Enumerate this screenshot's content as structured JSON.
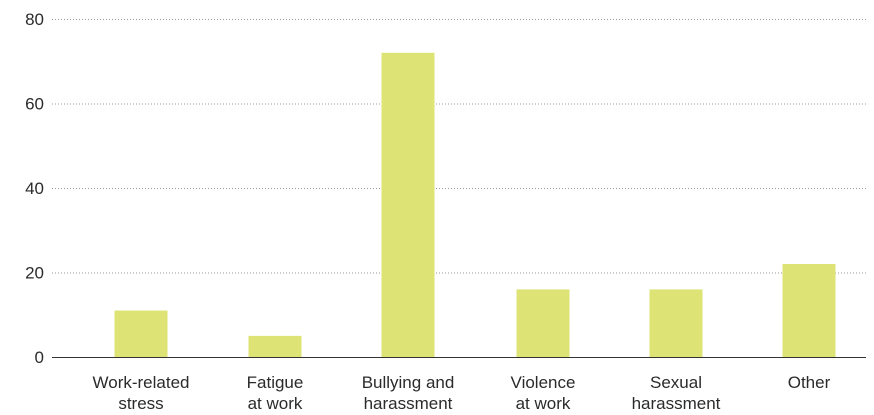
{
  "chart_data": {
    "type": "bar",
    "title": "",
    "xlabel": "",
    "ylabel": "",
    "ylim": [
      0,
      80
    ],
    "yticks": [
      0,
      20,
      40,
      60,
      80
    ],
    "grid": true,
    "categories": [
      [
        "Work-related",
        "stress"
      ],
      [
        "Fatigue",
        "at work"
      ],
      [
        "Bullying and",
        "harassment"
      ],
      [
        "Violence",
        "at work"
      ],
      [
        "Sexual",
        "harassment"
      ],
      [
        "Other"
      ]
    ],
    "values": [
      11,
      5,
      72,
      16,
      16,
      22
    ],
    "colors": {
      "bar": "#dde374"
    }
  }
}
